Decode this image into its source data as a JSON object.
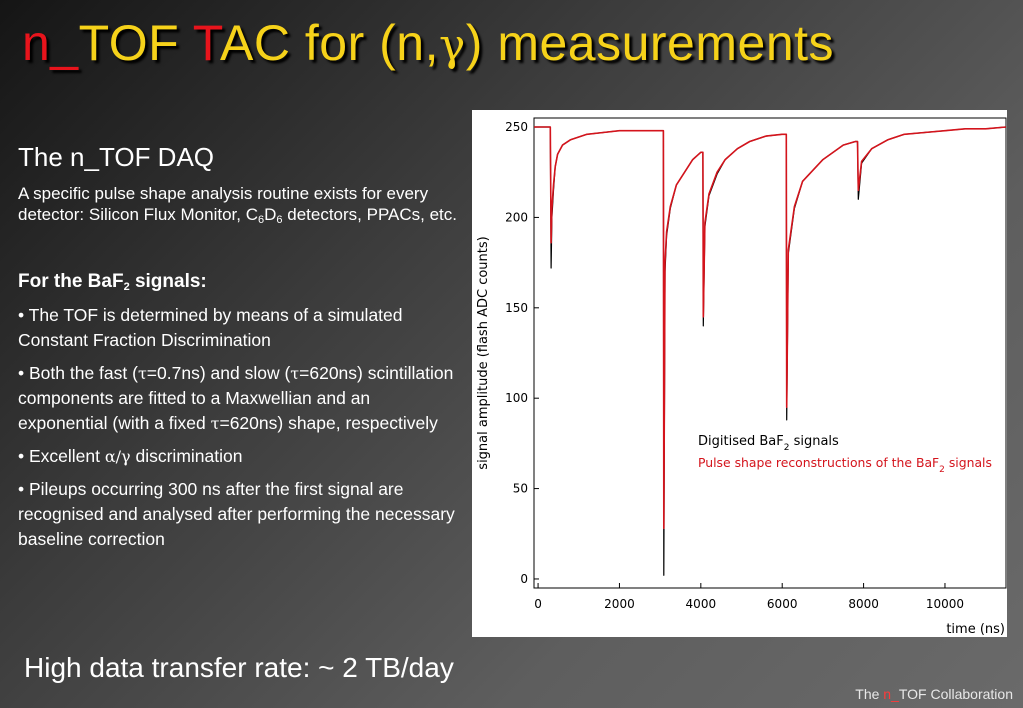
{
  "title": {
    "part1": "n_",
    "part2": "TOF ",
    "part3": "T",
    "part4": "AC for (n,",
    "gamma": "γ",
    "part5": ") measurements"
  },
  "left": {
    "subhead": "The n_TOF DAQ",
    "intro": {
      "pre": "A specific pulse shape analysis routine exists for every detector: Silicon Flux Monitor, C",
      "sub1": "6",
      "mid": "D",
      "sub2": "6",
      "post": " detectors, PPACs, etc."
    },
    "baf_heading": {
      "pre": "For the BaF",
      "sub": "2",
      "post": " signals:"
    },
    "bullets": {
      "b1": "• The TOF is determined by means of a simulated Constant Fraction Discrimination",
      "b2_a": "• Both the fast (",
      "b2_tau1": "τ",
      "b2_b": "=0.7ns) and slow (",
      "b2_tau2": "τ",
      "b2_c": "=620ns) scintillation components are fitted to a Maxwellian and an exponential (with a fixed ",
      "b2_tau3": "τ",
      "b2_d": "=620ns) shape, respectively",
      "b3_a": "• Excellent ",
      "b3_greek": "α/γ",
      "b3_b": " discrimination",
      "b4": "• Pileups occurring 300 ns after the first signal are recognised and analysed after performing the necessary baseline correction"
    }
  },
  "bottom_line": "High data transfer rate: ~ 2 TB/day",
  "footer": {
    "pre": "The ",
    "red": "n_",
    "post": "TOF Collaboration"
  },
  "colors": {
    "title_red": "#e8141c",
    "title_yellow": "#f6d21a",
    "signal_black": "#000000",
    "fit_red": "#d4141c"
  },
  "chart_data": {
    "type": "line",
    "xlabel": "time (ns)",
    "ylabel": "signal amplitude (flash ADC counts)",
    "xlim": [
      -100,
      11500
    ],
    "ylim": [
      -5,
      255
    ],
    "x_ticks": [
      0,
      2000,
      4000,
      6000,
      8000,
      10000
    ],
    "y_ticks": [
      0,
      50,
      100,
      150,
      200,
      250
    ],
    "x_tick_labels": [
      "0",
      "2000",
      "4000",
      "6000",
      "8000",
      "10000"
    ],
    "y_tick_labels": [
      "0",
      "50",
      "100",
      "150",
      "200",
      "250"
    ],
    "legend": {
      "position": "bottom-right",
      "entry1": {
        "pre": "Digitised BaF",
        "sub": "2",
        "post": " signals"
      },
      "entry2": {
        "pre": "Pulse shape reconstructions of the BaF",
        "sub": "2",
        "post": " signals"
      }
    },
    "series": [
      {
        "name": "Digitised BaF2 signals",
        "color": "#000000",
        "x": [
          -100,
          300,
          320,
          340,
          380,
          420,
          480,
          600,
          800,
          1200,
          1600,
          2000,
          2500,
          3000,
          3080,
          3090,
          3120,
          3160,
          3250,
          3400,
          3600,
          3800,
          4000,
          4050,
          4060,
          4100,
          4200,
          4400,
          4600,
          4900,
          5200,
          5600,
          6000,
          6100,
          6110,
          6150,
          6300,
          6500,
          7000,
          7500,
          7800,
          7850,
          7870,
          7950,
          8200,
          8600,
          9000,
          9500,
          10000,
          10500,
          11000,
          11500
        ],
        "y": [
          250,
          250,
          172,
          200,
          215,
          228,
          235,
          240,
          243,
          246,
          247,
          248,
          248,
          248,
          248,
          2,
          170,
          190,
          205,
          218,
          225,
          232,
          236,
          236,
          140,
          195,
          212,
          224,
          232,
          238,
          242,
          245,
          246,
          246,
          88,
          180,
          205,
          220,
          232,
          240,
          242,
          242,
          210,
          230,
          238,
          243,
          246,
          247,
          248,
          249,
          249,
          250
        ]
      },
      {
        "name": "Pulse shape reconstructions of the BaF2 signals",
        "color": "#d4141c",
        "x": [
          -100,
          300,
          320,
          340,
          380,
          420,
          480,
          600,
          800,
          1200,
          1600,
          2000,
          2500,
          3000,
          3080,
          3090,
          3120,
          3160,
          3250,
          3400,
          3600,
          3800,
          4000,
          4050,
          4060,
          4100,
          4200,
          4400,
          4600,
          4900,
          5200,
          5600,
          6000,
          6100,
          6110,
          6150,
          6300,
          6500,
          7000,
          7500,
          7800,
          7850,
          7870,
          7950,
          8200,
          8600,
          9000,
          9500,
          10000,
          10500,
          11000,
          11500
        ],
        "y": [
          250,
          250,
          186,
          205,
          218,
          228,
          235,
          240,
          243,
          246,
          247,
          248,
          248,
          248,
          248,
          28,
          175,
          192,
          206,
          218,
          225,
          232,
          236,
          236,
          145,
          197,
          213,
          225,
          232,
          238,
          242,
          245,
          246,
          246,
          95,
          182,
          206,
          220,
          232,
          240,
          242,
          242,
          215,
          231,
          238,
          243,
          246,
          247,
          248,
          249,
          249,
          250
        ]
      }
    ]
  }
}
